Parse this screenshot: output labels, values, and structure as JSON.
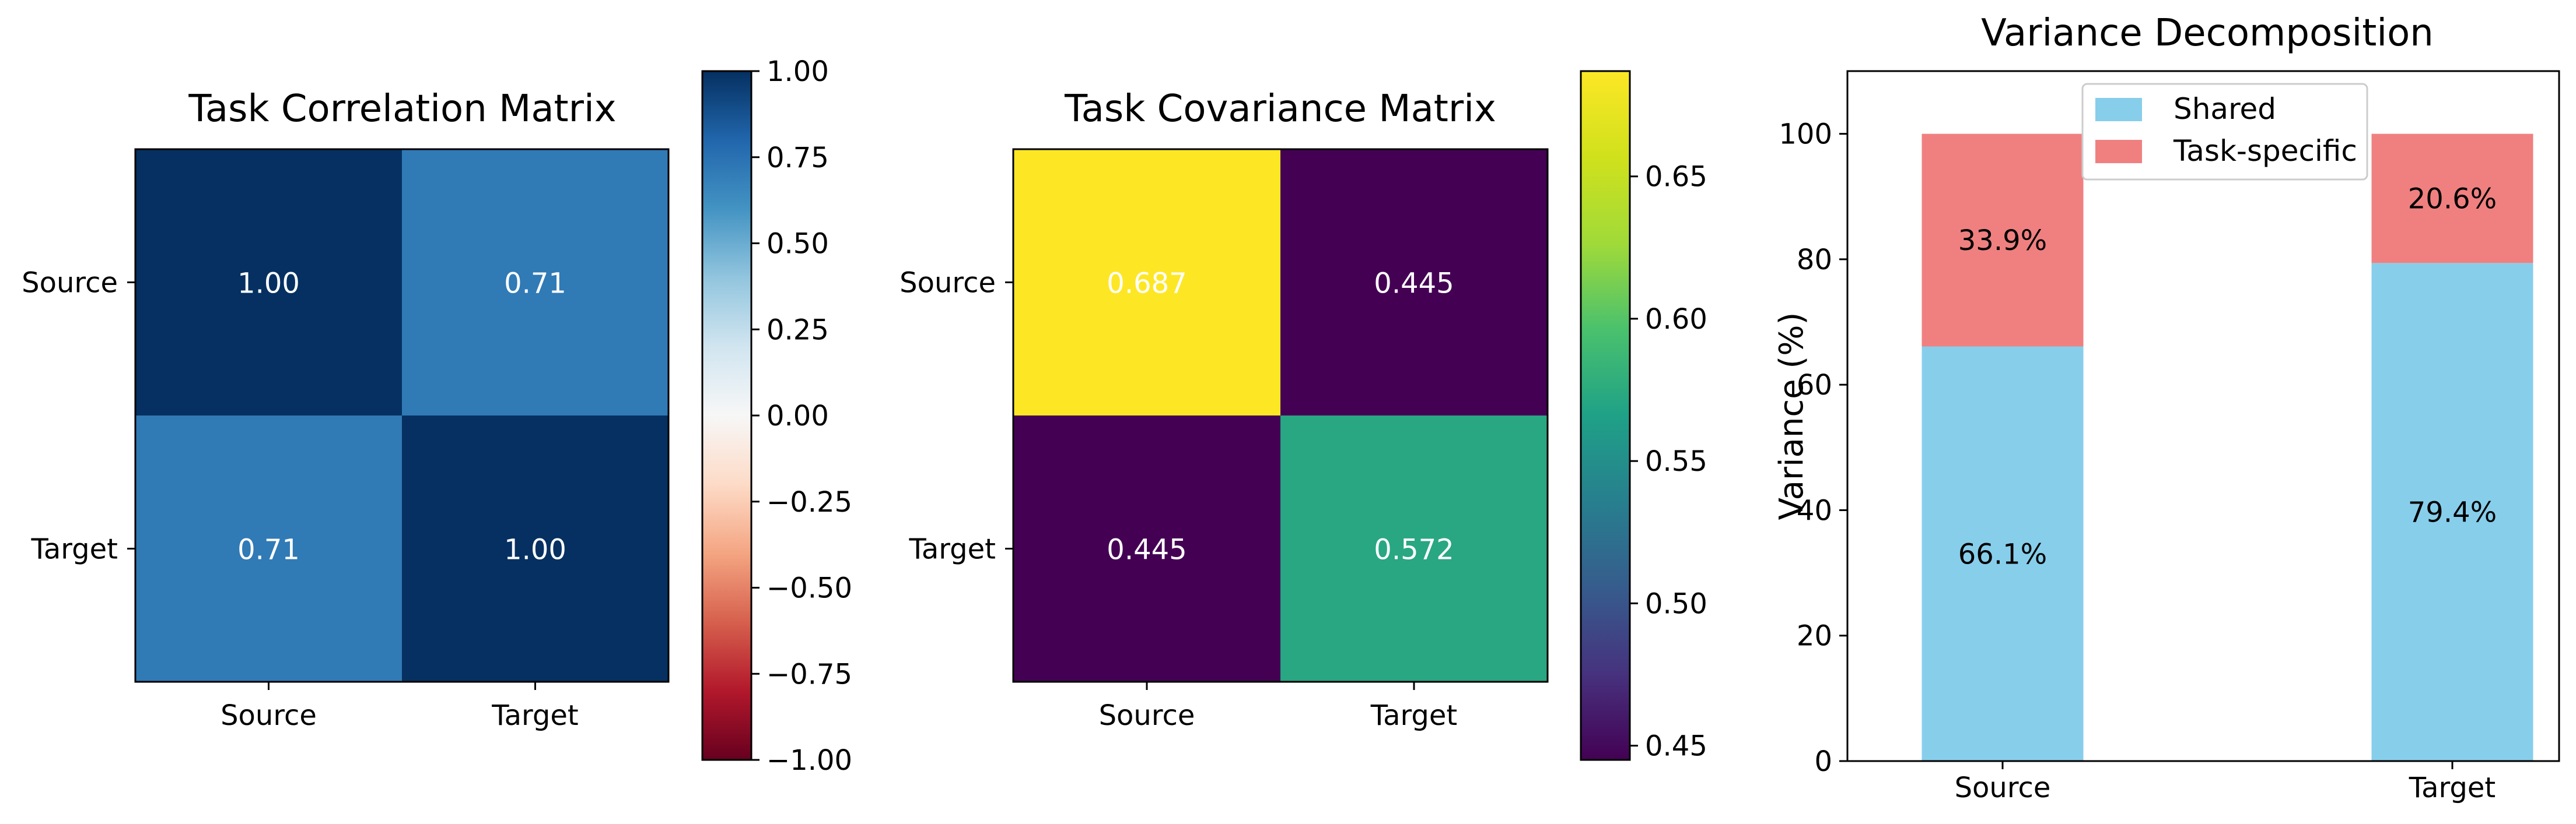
{
  "chart_data": [
    {
      "type": "heatmap",
      "title": "Task Correlation Matrix",
      "x_labels": [
        "Source",
        "Target"
      ],
      "y_labels": [
        "Source",
        "Target"
      ],
      "values": [
        [
          1.0,
          0.71
        ],
        [
          0.71,
          1.0
        ]
      ],
      "cell_labels": [
        [
          "1.00",
          "0.71"
        ],
        [
          "0.71",
          "1.00"
        ]
      ],
      "colormap": "RdBu",
      "vmin": -1.0,
      "vmax": 1.0,
      "colorbar_ticks": [
        "1.00",
        "0.75",
        "0.50",
        "0.25",
        "0.00",
        "−0.25",
        "−0.50",
        "−0.75",
        "−1.00"
      ],
      "colorbar_tick_values": [
        1.0,
        0.75,
        0.5,
        0.25,
        0.0,
        -0.25,
        -0.5,
        -0.75,
        -1.0
      ]
    },
    {
      "type": "heatmap",
      "title": "Task Covariance Matrix",
      "x_labels": [
        "Source",
        "Target"
      ],
      "y_labels": [
        "Source",
        "Target"
      ],
      "values": [
        [
          0.687,
          0.445
        ],
        [
          0.445,
          0.572
        ]
      ],
      "cell_labels": [
        [
          "0.687",
          "0.445"
        ],
        [
          "0.445",
          "0.572"
        ]
      ],
      "colormap": "viridis",
      "vmin": 0.445,
      "vmax": 0.687,
      "colorbar_ticks": [
        "0.65",
        "0.60",
        "0.55",
        "0.50",
        "0.45"
      ],
      "colorbar_tick_values": [
        0.65,
        0.6,
        0.55,
        0.5,
        0.45
      ]
    },
    {
      "type": "bar",
      "stacked": true,
      "title": "Variance Decomposition",
      "categories": [
        "Source",
        "Target"
      ],
      "ylabel": "Variance (%)",
      "ylim": [
        0,
        110
      ],
      "yticks": [
        "0",
        "20",
        "40",
        "60",
        "80",
        "100"
      ],
      "ytick_values": [
        0,
        20,
        40,
        60,
        80,
        100
      ],
      "legend_position": "upper-center",
      "series": [
        {
          "name": "Shared",
          "values": [
            66.1,
            79.4
          ],
          "labels": [
            "66.1%",
            "79.4%"
          ],
          "color": "#87ceeb"
        },
        {
          "name": "Task-specific",
          "values": [
            33.9,
            20.6
          ],
          "labels": [
            "33.9%",
            "20.6%"
          ],
          "color": "#f08080"
        }
      ]
    }
  ]
}
